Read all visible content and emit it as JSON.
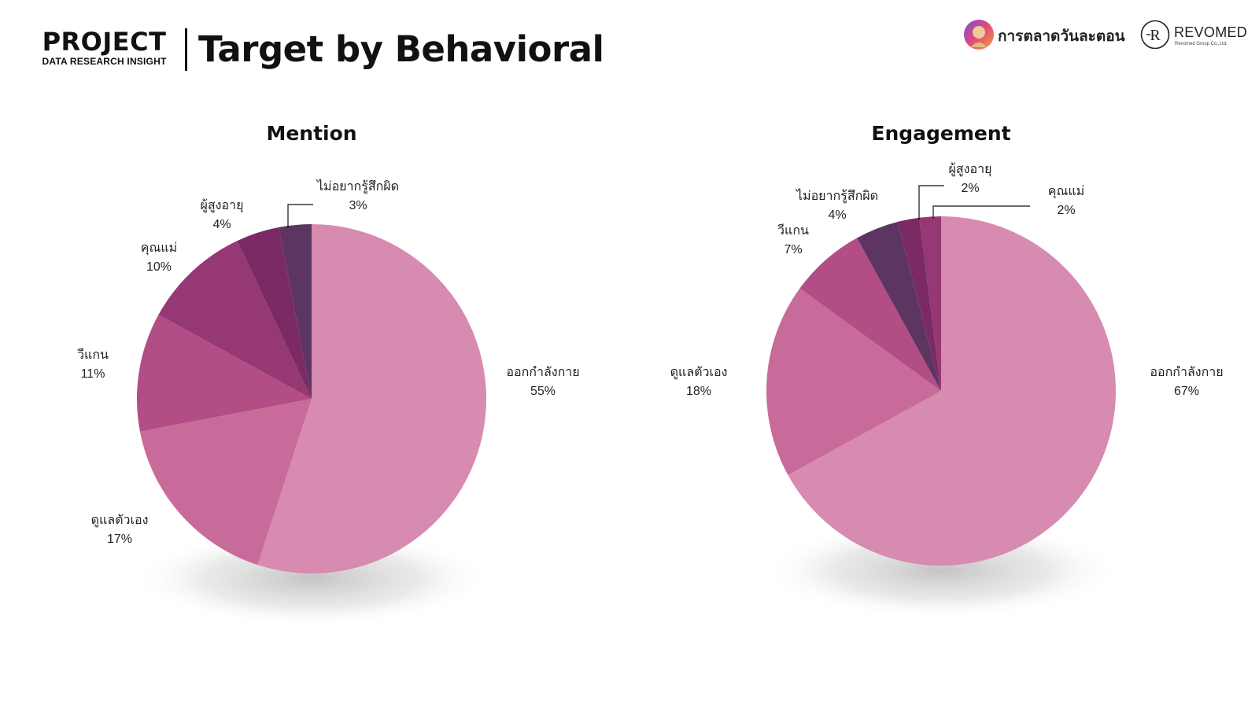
{
  "header": {
    "project_title": "PROJECT",
    "project_subtitle": "DATA RESEARCH INSIGHT",
    "page_title": "Target by Behavioral",
    "brand_left_text": "การตลาดวันละตอน",
    "brand_right_name": "REVOMED",
    "brand_right_sub": "Revomed Group Co.,Ltd.",
    "brand_right_monogram": "R"
  },
  "colors": {
    "exercise": "#D78BB0",
    "selfcare": "#C86B9A",
    "vegan": "#B24D86",
    "mom": "#953874",
    "elderly": "#7C2A64",
    "guilt": "#5C3660",
    "leader": "#111111",
    "shadow": "#b9b9b9"
  },
  "chart_data": [
    {
      "type": "pie",
      "title": "Mention",
      "labels": [
        "ออกกำลังกาย",
        "ดูแลตัวเอง",
        "วีแกน",
        "คุณแม่",
        "ผู้สูงอายุ",
        "ไม่อยากรู้สึกผิด"
      ],
      "values": [
        55,
        17,
        11,
        10,
        4,
        3
      ],
      "value_labels": [
        "55%",
        "17%",
        "11%",
        "10%",
        "4%",
        "3%"
      ],
      "slice_keys": [
        "exercise",
        "selfcare",
        "vegan",
        "mom",
        "elderly",
        "guilt"
      ]
    },
    {
      "type": "pie",
      "title": "Engagement",
      "labels": [
        "ออกกำลังกาย",
        "ดูแลตัวเอง",
        "วีแกน",
        "ไม่อยากรู้สึกผิด",
        "ผู้สูงอายุ",
        "คุณแม่"
      ],
      "values": [
        67,
        18,
        7,
        4,
        2,
        2
      ],
      "value_labels": [
        "67%",
        "18%",
        "7%",
        "4%",
        "2%",
        "2%"
      ],
      "slice_keys": [
        "exercise",
        "selfcare",
        "vegan",
        "guilt",
        "elderly",
        "mom"
      ]
    }
  ]
}
